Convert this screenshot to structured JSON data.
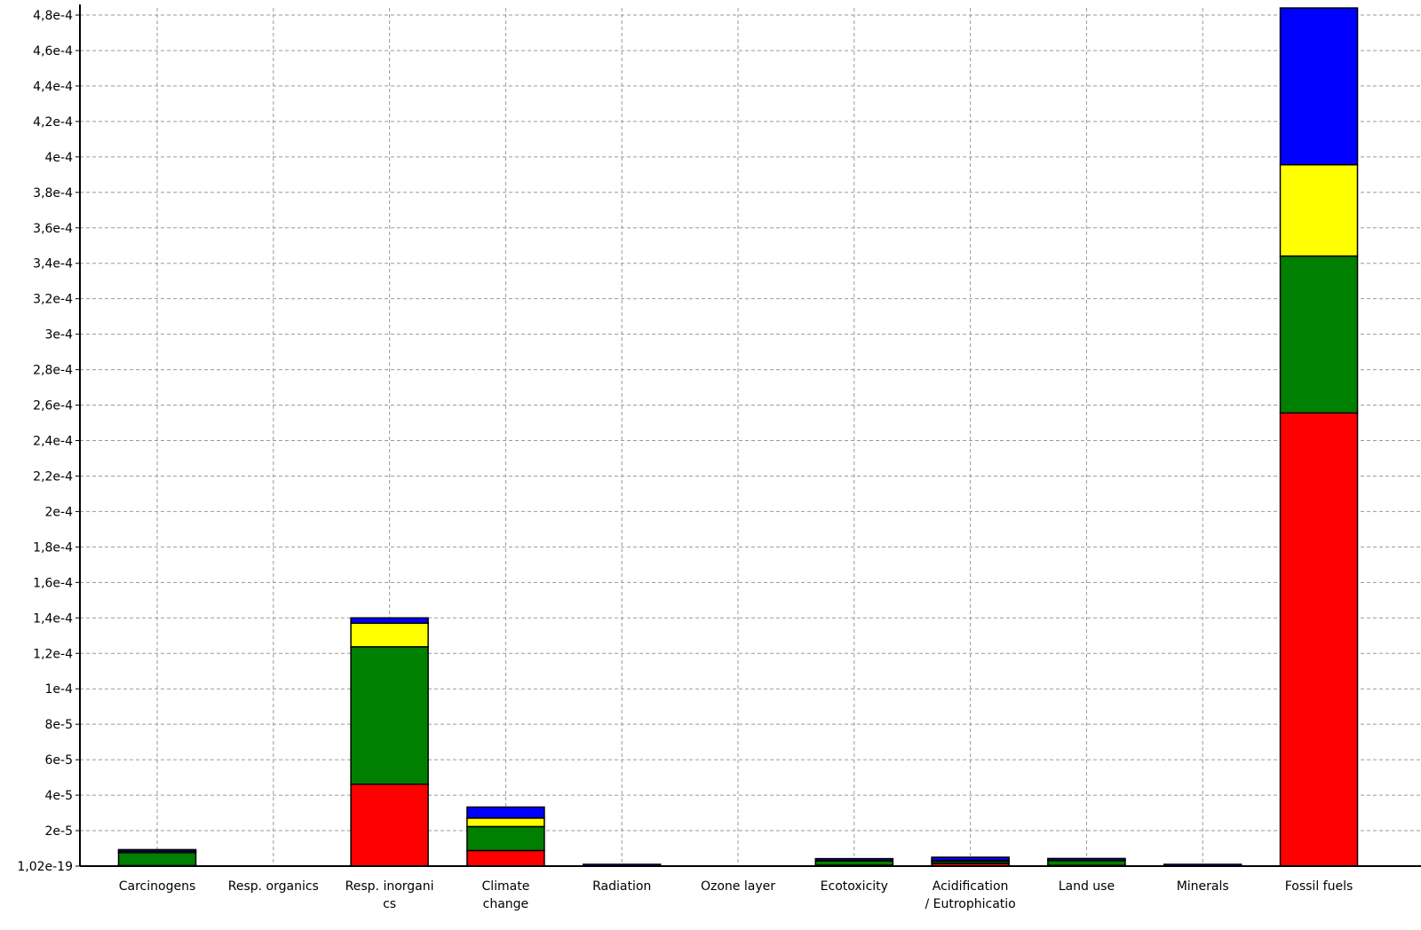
{
  "chart_data": {
    "type": "bar",
    "stacked": true,
    "title": "",
    "xlabel": "",
    "ylabel": "",
    "ylim": [
      0,
      0.00048
    ],
    "y_ticks": [
      {
        "value": 0,
        "label": "1,02e-19"
      },
      {
        "value": 2e-05,
        "label": "2e-5"
      },
      {
        "value": 4e-05,
        "label": "4e-5"
      },
      {
        "value": 6e-05,
        "label": "6e-5"
      },
      {
        "value": 8e-05,
        "label": "8e-5"
      },
      {
        "value": 0.0001,
        "label": "1e-4"
      },
      {
        "value": 0.00012,
        "label": "1,2e-4"
      },
      {
        "value": 0.00014,
        "label": "1,4e-4"
      },
      {
        "value": 0.00016,
        "label": "1,6e-4"
      },
      {
        "value": 0.00018,
        "label": "1,8e-4"
      },
      {
        "value": 0.0002,
        "label": "2e-4"
      },
      {
        "value": 0.00022,
        "label": "2,2e-4"
      },
      {
        "value": 0.00024,
        "label": "2,4e-4"
      },
      {
        "value": 0.00026,
        "label": "2,6e-4"
      },
      {
        "value": 0.00028,
        "label": "2,8e-4"
      },
      {
        "value": 0.0003,
        "label": "3e-4"
      },
      {
        "value": 0.00032,
        "label": "3,2e-4"
      },
      {
        "value": 0.00034,
        "label": "3,4e-4"
      },
      {
        "value": 0.00036,
        "label": "3,6e-4"
      },
      {
        "value": 0.00038,
        "label": "3,8e-4"
      },
      {
        "value": 0.0004,
        "label": "4e-4"
      },
      {
        "value": 0.00042,
        "label": "4,2e-4"
      },
      {
        "value": 0.00044,
        "label": "4,4e-4"
      },
      {
        "value": 0.00046,
        "label": "4,6e-4"
      },
      {
        "value": 0.00048,
        "label": "4,8e-4"
      }
    ],
    "categories": [
      [
        "Carcinogens"
      ],
      [
        "Resp. organics"
      ],
      [
        "Resp. inorgani",
        "cs"
      ],
      [
        "Climate",
        "change"
      ],
      [
        "Radiation"
      ],
      [
        "Ozone layer"
      ],
      [
        "Ecotoxicity"
      ],
      [
        "Acidification",
        "/ Eutrophicatio"
      ],
      [
        "Land use"
      ],
      [
        "Minerals"
      ],
      [
        "Fossil fuels"
      ]
    ],
    "grid": true,
    "legend": "none",
    "series": [
      {
        "color": "#ff0000",
        "values": [
          3e-07,
          0,
          4.62e-05,
          8.8e-06,
          0,
          0,
          5e-07,
          1.5e-06,
          4e-07,
          0,
          0.0002556
        ]
      },
      {
        "color": "#008000",
        "values": [
          7.3e-06,
          0,
          7.75e-05,
          1.35e-05,
          0,
          0,
          2.5e-06,
          1.2e-06,
          2.7e-06,
          0,
          8.85e-05
        ]
      },
      {
        "color": "#ffff00",
        "values": [
          7e-07,
          0,
          1.33e-05,
          4.8e-06,
          0,
          0,
          2e-07,
          5e-07,
          2e-07,
          0,
          5.15e-05
        ]
      },
      {
        "color": "#0000ff",
        "values": [
          1e-06,
          0,
          3e-06,
          6.2e-06,
          6e-07,
          0,
          6e-07,
          1.8e-06,
          6e-07,
          1e-06,
          8.84e-05
        ]
      }
    ]
  }
}
